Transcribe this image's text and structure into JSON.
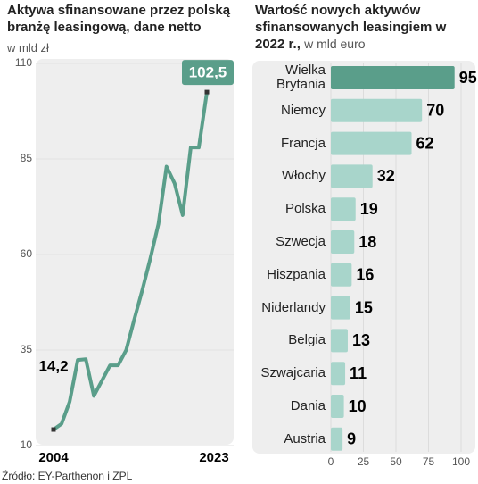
{
  "chart_data": [
    {
      "type": "line",
      "title": "Aktywa sfinansowane przez polską branżę leasingową, dane netto",
      "subtitle": "w mld zł",
      "x": [
        2004,
        2005,
        2006,
        2007,
        2008,
        2009,
        2010,
        2011,
        2012,
        2013,
        2014,
        2015,
        2016,
        2017,
        2018,
        2019,
        2020,
        2021,
        2022,
        2023
      ],
      "series": [
        {
          "name": "Aktywa",
          "color": "#5a9e8a",
          "values": [
            14.2,
            15.7,
            21.5,
            32.4,
            32.6,
            23,
            27,
            31,
            31,
            35,
            43,
            50.7,
            59,
            68,
            83,
            78.6,
            70.3,
            88,
            88,
            102.5
          ],
          "value_labels": [
            "14,2",
            null,
            null,
            null,
            null,
            null,
            null,
            null,
            null,
            null,
            null,
            null,
            null,
            null,
            null,
            null,
            null,
            null,
            null,
            "102,5"
          ]
        }
      ],
      "xlim": [
        2004,
        2023
      ],
      "xticks": [
        2004,
        2023
      ],
      "ylim": [
        10,
        110
      ],
      "yticks": [
        10,
        35,
        60,
        85,
        110
      ],
      "grid": true
    },
    {
      "type": "hbar",
      "title": "Wartość nowych aktywów sfinansowanych leasingiem w 2022 r.,",
      "subtitle": "w mld euro",
      "categories": [
        "Wielka Brytania",
        "Niemcy",
        "Francja",
        "Włochy",
        "Polska",
        "Szwecja",
        "Hiszpania",
        "Niderlandy",
        "Belgia",
        "Szwajcaria",
        "Dania",
        "Austria"
      ],
      "values": [
        95,
        70,
        62,
        32,
        19,
        18,
        16,
        15,
        13,
        11,
        10,
        9
      ],
      "colors": [
        "#5a9e8a",
        "#a8d5cb",
        "#a8d5cb",
        "#a8d5cb",
        "#a8d5cb",
        "#a8d5cb",
        "#a8d5cb",
        "#a8d5cb",
        "#a8d5cb",
        "#a8d5cb",
        "#a8d5cb",
        "#a8d5cb"
      ],
      "xlim": [
        0,
        100
      ],
      "xticks": [
        0,
        25,
        50,
        75,
        100
      ],
      "grid": true
    }
  ],
  "source": "Źródło: EY-Parthenon i ZPL"
}
